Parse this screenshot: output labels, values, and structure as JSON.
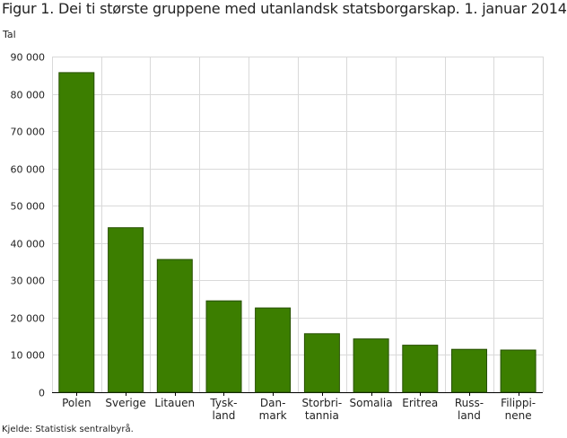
{
  "chart_data": {
    "type": "bar",
    "title": "Figur 1. Dei ti største gruppene med utanlandsk statsborgarskap. 1. januar 2014",
    "ylabel": "Tal",
    "xlabel": "",
    "categories": [
      "Polen",
      "Sverige",
      "Litauen",
      "Tysk-land",
      "Dan-mark",
      "Storbri-tannia",
      "Somalia",
      "Eritrea",
      "Russ-land",
      "Filippi-nene"
    ],
    "category_lines": [
      [
        "Polen"
      ],
      [
        "Sverige"
      ],
      [
        "Litauen"
      ],
      [
        "Tysk-",
        "land"
      ],
      [
        "Dan-",
        "mark"
      ],
      [
        "Storbri-",
        "tannia"
      ],
      [
        "Somalia"
      ],
      [
        "Eritrea"
      ],
      [
        "Russ-",
        "land"
      ],
      [
        "Filippi-",
        "nene"
      ]
    ],
    "values": [
      85700,
      44100,
      35600,
      24500,
      22600,
      15700,
      14300,
      12600,
      11500,
      11300
    ],
    "ylim": [
      0,
      90000
    ],
    "yticks": [
      0,
      10000,
      20000,
      30000,
      40000,
      50000,
      60000,
      70000,
      80000,
      90000
    ],
    "ytick_labels": [
      "0",
      "10 000",
      "20 000",
      "30 000",
      "40 000",
      "50 000",
      "60 000",
      "70 000",
      "80 000",
      "90 000"
    ],
    "grid": true,
    "bar_color": "#3c7e00",
    "bar_edge_color": "#264f00",
    "grid_color": "#d9d9d9",
    "source": "Kjelde: Statistisk sentralbyrå."
  }
}
